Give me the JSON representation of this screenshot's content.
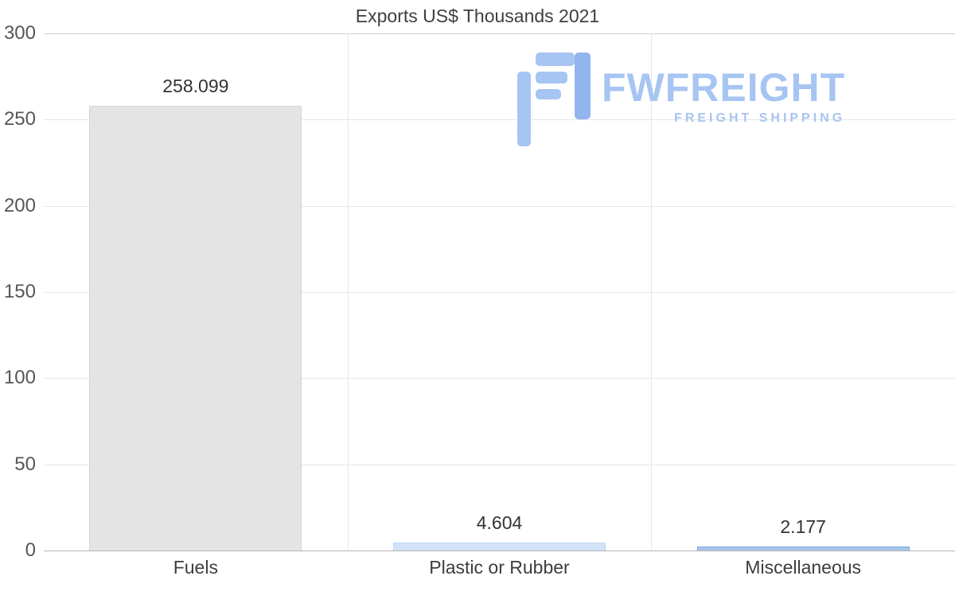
{
  "title": "Exports US$ Thousands 2021",
  "watermark": {
    "brand": "FWFREIGHT",
    "tagline": "FREIGHT SHIPPING",
    "color": "#a3c2f2"
  },
  "chart_data": {
    "type": "bar",
    "title": "Exports US$ Thousands 2021",
    "categories": [
      "Fuels",
      "Plastic or Rubber",
      "Miscellaneous"
    ],
    "values": [
      258.099,
      4.604,
      2.177
    ],
    "value_labels": [
      "258.099",
      "4.604",
      "2.177"
    ],
    "bar_colors": [
      "#e4e4e4",
      "#d2e3f9",
      "#a7c6e9"
    ],
    "bar_border_colors": [
      "#d6d6d6",
      "#bdd6f4",
      "#7fa9d8"
    ],
    "xlabel": "",
    "ylabel": "",
    "ylim": [
      0,
      300
    ],
    "yticks": [
      0,
      50,
      100,
      150,
      200,
      250,
      300
    ],
    "grid": true,
    "legend_position": "none"
  }
}
